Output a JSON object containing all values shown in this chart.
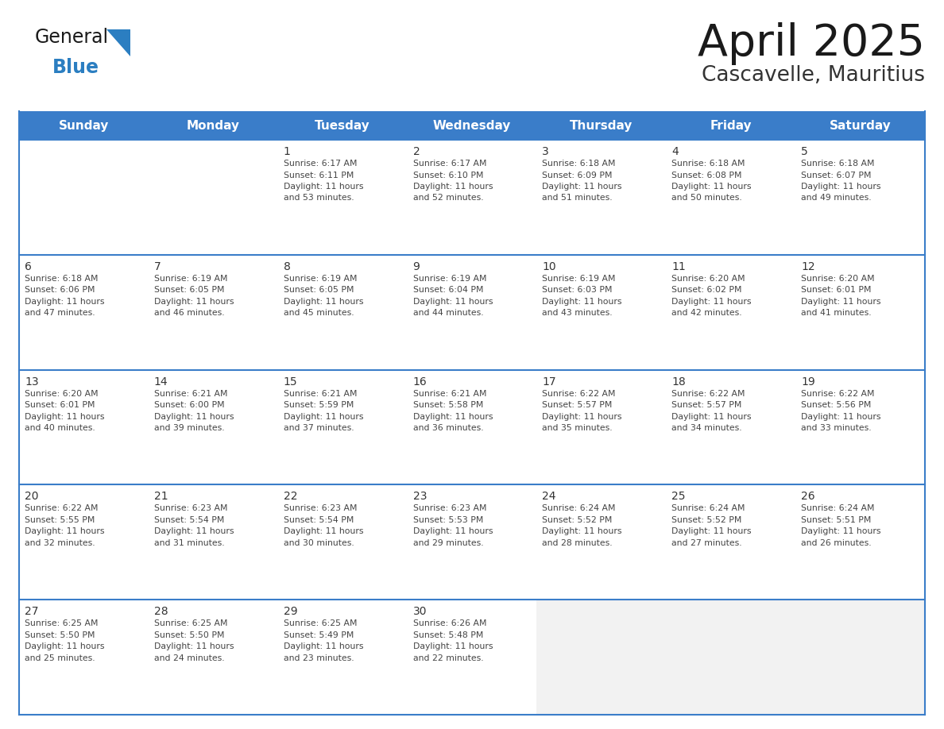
{
  "title": "April 2025",
  "subtitle": "Cascavelle, Mauritius",
  "days_of_week": [
    "Sunday",
    "Monday",
    "Tuesday",
    "Wednesday",
    "Thursday",
    "Friday",
    "Saturday"
  ],
  "header_bg": "#3A7DC9",
  "header_text": "#FFFFFF",
  "row_bg": "#FFFFFF",
  "row_bg_last": "#F2F2F2",
  "border_color": "#3A7DC9",
  "day_number_color": "#333333",
  "text_color": "#444444",
  "title_color": "#1a1a1a",
  "subtitle_color": "#333333",
  "blue_color": "#2B7EC1",
  "logo_general_color": "#1a1a1a",
  "figsize": [
    11.88,
    9.18
  ],
  "dpi": 100,
  "weeks": [
    [
      {
        "day": "",
        "info": ""
      },
      {
        "day": "",
        "info": ""
      },
      {
        "day": "1",
        "info": "Sunrise: 6:17 AM\nSunset: 6:11 PM\nDaylight: 11 hours\nand 53 minutes."
      },
      {
        "day": "2",
        "info": "Sunrise: 6:17 AM\nSunset: 6:10 PM\nDaylight: 11 hours\nand 52 minutes."
      },
      {
        "day": "3",
        "info": "Sunrise: 6:18 AM\nSunset: 6:09 PM\nDaylight: 11 hours\nand 51 minutes."
      },
      {
        "day": "4",
        "info": "Sunrise: 6:18 AM\nSunset: 6:08 PM\nDaylight: 11 hours\nand 50 minutes."
      },
      {
        "day": "5",
        "info": "Sunrise: 6:18 AM\nSunset: 6:07 PM\nDaylight: 11 hours\nand 49 minutes."
      }
    ],
    [
      {
        "day": "6",
        "info": "Sunrise: 6:18 AM\nSunset: 6:06 PM\nDaylight: 11 hours\nand 47 minutes."
      },
      {
        "day": "7",
        "info": "Sunrise: 6:19 AM\nSunset: 6:05 PM\nDaylight: 11 hours\nand 46 minutes."
      },
      {
        "day": "8",
        "info": "Sunrise: 6:19 AM\nSunset: 6:05 PM\nDaylight: 11 hours\nand 45 minutes."
      },
      {
        "day": "9",
        "info": "Sunrise: 6:19 AM\nSunset: 6:04 PM\nDaylight: 11 hours\nand 44 minutes."
      },
      {
        "day": "10",
        "info": "Sunrise: 6:19 AM\nSunset: 6:03 PM\nDaylight: 11 hours\nand 43 minutes."
      },
      {
        "day": "11",
        "info": "Sunrise: 6:20 AM\nSunset: 6:02 PM\nDaylight: 11 hours\nand 42 minutes."
      },
      {
        "day": "12",
        "info": "Sunrise: 6:20 AM\nSunset: 6:01 PM\nDaylight: 11 hours\nand 41 minutes."
      }
    ],
    [
      {
        "day": "13",
        "info": "Sunrise: 6:20 AM\nSunset: 6:01 PM\nDaylight: 11 hours\nand 40 minutes."
      },
      {
        "day": "14",
        "info": "Sunrise: 6:21 AM\nSunset: 6:00 PM\nDaylight: 11 hours\nand 39 minutes."
      },
      {
        "day": "15",
        "info": "Sunrise: 6:21 AM\nSunset: 5:59 PM\nDaylight: 11 hours\nand 37 minutes."
      },
      {
        "day": "16",
        "info": "Sunrise: 6:21 AM\nSunset: 5:58 PM\nDaylight: 11 hours\nand 36 minutes."
      },
      {
        "day": "17",
        "info": "Sunrise: 6:22 AM\nSunset: 5:57 PM\nDaylight: 11 hours\nand 35 minutes."
      },
      {
        "day": "18",
        "info": "Sunrise: 6:22 AM\nSunset: 5:57 PM\nDaylight: 11 hours\nand 34 minutes."
      },
      {
        "day": "19",
        "info": "Sunrise: 6:22 AM\nSunset: 5:56 PM\nDaylight: 11 hours\nand 33 minutes."
      }
    ],
    [
      {
        "day": "20",
        "info": "Sunrise: 6:22 AM\nSunset: 5:55 PM\nDaylight: 11 hours\nand 32 minutes."
      },
      {
        "day": "21",
        "info": "Sunrise: 6:23 AM\nSunset: 5:54 PM\nDaylight: 11 hours\nand 31 minutes."
      },
      {
        "day": "22",
        "info": "Sunrise: 6:23 AM\nSunset: 5:54 PM\nDaylight: 11 hours\nand 30 minutes."
      },
      {
        "day": "23",
        "info": "Sunrise: 6:23 AM\nSunset: 5:53 PM\nDaylight: 11 hours\nand 29 minutes."
      },
      {
        "day": "24",
        "info": "Sunrise: 6:24 AM\nSunset: 5:52 PM\nDaylight: 11 hours\nand 28 minutes."
      },
      {
        "day": "25",
        "info": "Sunrise: 6:24 AM\nSunset: 5:52 PM\nDaylight: 11 hours\nand 27 minutes."
      },
      {
        "day": "26",
        "info": "Sunrise: 6:24 AM\nSunset: 5:51 PM\nDaylight: 11 hours\nand 26 minutes."
      }
    ],
    [
      {
        "day": "27",
        "info": "Sunrise: 6:25 AM\nSunset: 5:50 PM\nDaylight: 11 hours\nand 25 minutes."
      },
      {
        "day": "28",
        "info": "Sunrise: 6:25 AM\nSunset: 5:50 PM\nDaylight: 11 hours\nand 24 minutes."
      },
      {
        "day": "29",
        "info": "Sunrise: 6:25 AM\nSunset: 5:49 PM\nDaylight: 11 hours\nand 23 minutes."
      },
      {
        "day": "30",
        "info": "Sunrise: 6:26 AM\nSunset: 5:48 PM\nDaylight: 11 hours\nand 22 minutes."
      },
      {
        "day": "",
        "info": ""
      },
      {
        "day": "",
        "info": ""
      },
      {
        "day": "",
        "info": ""
      }
    ]
  ]
}
